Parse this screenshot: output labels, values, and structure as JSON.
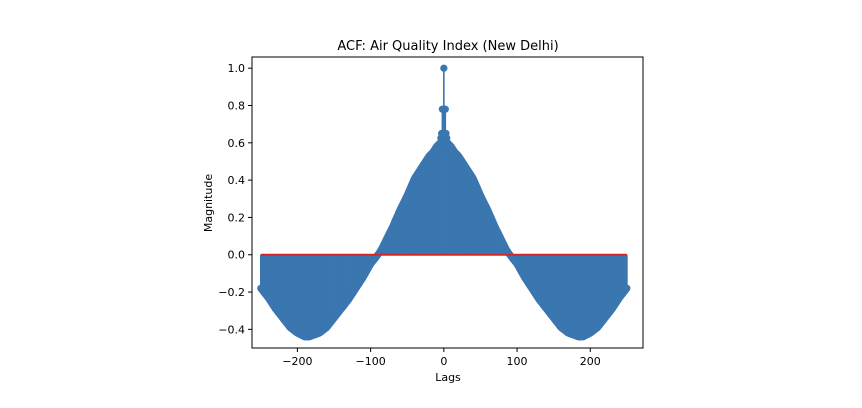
{
  "chart_data": {
    "type": "stem",
    "title": "ACF: Air Quality Index (New Delhi)",
    "xlabel": "Lags",
    "ylabel": "Magnitude",
    "xlim": [
      -262,
      272
    ],
    "ylim": [
      -0.5,
      1.06
    ],
    "xticks": [
      -200,
      -100,
      0,
      100,
      200
    ],
    "xtick_labels": [
      "−200",
      "−100",
      "0",
      "100",
      "200"
    ],
    "yticks": [
      -0.4,
      -0.2,
      0.0,
      0.2,
      0.4,
      0.6,
      0.8,
      1.0
    ],
    "ytick_labels": [
      "−0.4",
      "−0.2",
      "0.0",
      "0.2",
      "0.4",
      "0.6",
      "0.8",
      "1.0"
    ],
    "lag_range": [
      -250,
      250
    ],
    "acf_profile": {
      "lags": [
        -250,
        -240,
        -230,
        -220,
        -210,
        -200,
        -190,
        -184,
        -170,
        -160,
        -150,
        -140,
        -130,
        -120,
        -110,
        -100,
        -90,
        -85,
        -80,
        -70,
        -60,
        -50,
        -40,
        -30,
        -20,
        -15,
        -10,
        -5,
        -3,
        -2,
        -1,
        0,
        1,
        2,
        3,
        5,
        10,
        15,
        20,
        30,
        40,
        50,
        60,
        70,
        80,
        85,
        90,
        100,
        110,
        120,
        130,
        140,
        150,
        160,
        170,
        184,
        190,
        200,
        210,
        220,
        230,
        240,
        250
      ],
      "values": [
        -0.18,
        -0.23,
        -0.29,
        -0.34,
        -0.39,
        -0.42,
        -0.44,
        -0.44,
        -0.42,
        -0.39,
        -0.34,
        -0.29,
        -0.24,
        -0.18,
        -0.12,
        -0.05,
        0.0,
        0.03,
        0.07,
        0.15,
        0.24,
        0.32,
        0.41,
        0.47,
        0.53,
        0.55,
        0.58,
        0.6,
        0.65,
        0.78,
        0.78,
        1.0,
        0.78,
        0.78,
        0.65,
        0.6,
        0.58,
        0.55,
        0.53,
        0.47,
        0.41,
        0.32,
        0.24,
        0.15,
        0.07,
        0.03,
        0.0,
        -0.05,
        -0.12,
        -0.18,
        -0.24,
        -0.29,
        -0.34,
        -0.39,
        -0.42,
        -0.44,
        -0.44,
        -0.42,
        -0.39,
        -0.34,
        -0.29,
        -0.23,
        -0.18
      ]
    },
    "colors": {
      "stem": "#3a76af",
      "baseline": "#d62728",
      "axes": "#000000"
    },
    "grid": false,
    "legend": "none"
  }
}
